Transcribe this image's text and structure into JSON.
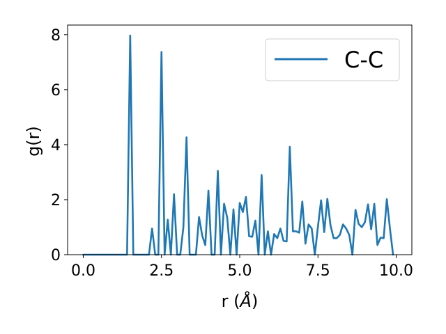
{
  "chart_data": {
    "type": "line",
    "title": "",
    "xlabel": "r (",
    "xlabel_symbol": "Å",
    "xlabel_suffix": ")",
    "ylabel": "g(r)",
    "xlim": [
      -0.5,
      10.5
    ],
    "ylim": [
      0,
      8.35
    ],
    "x_ticks": [
      0.0,
      2.5,
      5.0,
      7.5,
      10.0
    ],
    "x_tick_labels": [
      "0.0",
      "2.5",
      "5.0",
      "7.5",
      "10.0"
    ],
    "y_ticks": [
      0,
      2,
      4,
      6,
      8
    ],
    "y_tick_labels": [
      "0",
      "2",
      "4",
      "6",
      "8"
    ],
    "grid": false,
    "legend": {
      "position": "top-right",
      "entries": [
        "C-C"
      ]
    },
    "series": [
      {
        "name": "C-C",
        "color": "#1f77b4",
        "x": [
          0.0,
          1.4,
          1.5,
          1.6,
          2.1,
          2.2,
          2.3,
          2.4,
          2.5,
          2.6,
          2.7,
          2.8,
          2.9,
          3.0,
          3.1,
          3.2,
          3.3,
          3.4,
          3.5,
          3.6,
          3.7,
          3.8,
          3.9,
          4.0,
          4.1,
          4.2,
          4.3,
          4.4,
          4.5,
          4.6,
          4.7,
          4.8,
          4.9,
          5.0,
          5.1,
          5.2,
          5.3,
          5.4,
          5.5,
          5.6,
          5.7,
          5.8,
          5.9,
          6.0,
          6.1,
          6.2,
          6.3,
          6.4,
          6.5,
          6.6,
          6.7,
          6.8,
          6.9,
          7.0,
          7.1,
          7.2,
          7.3,
          7.4,
          7.5,
          7.6,
          7.7,
          7.8,
          7.9,
          8.0,
          8.1,
          8.2,
          8.3,
          8.4,
          8.5,
          8.6,
          8.7,
          8.8,
          8.9,
          9.0,
          9.1,
          9.2,
          9.3,
          9.4,
          9.5,
          9.6,
          9.7,
          9.8,
          9.9
        ],
        "y": [
          0,
          0,
          7.97,
          0,
          0,
          0.95,
          0,
          0,
          7.37,
          0,
          1.27,
          0,
          2.2,
          0,
          0,
          1.0,
          4.27,
          0,
          0,
          0,
          1.37,
          0.7,
          0.35,
          2.33,
          0,
          0,
          3.05,
          0,
          1.85,
          1.35,
          0,
          1.65,
          0,
          1.88,
          1.55,
          2.1,
          0.67,
          0.65,
          1.24,
          0,
          2.9,
          0,
          0.85,
          0,
          0.75,
          0.6,
          0.95,
          0.5,
          0.48,
          3.92,
          0.85,
          0.85,
          0.8,
          1.93,
          0.4,
          1.1,
          0.95,
          0,
          1.03,
          1.98,
          0.82,
          2.03,
          1.07,
          0.6,
          0.6,
          0.72,
          1.1,
          0.95,
          0.72,
          0,
          1.63,
          1.12,
          1.0,
          1.18,
          1.83,
          0.92,
          1.85,
          0.35,
          0.62,
          0.6,
          2.02,
          0.95,
          0
        ]
      }
    ]
  }
}
